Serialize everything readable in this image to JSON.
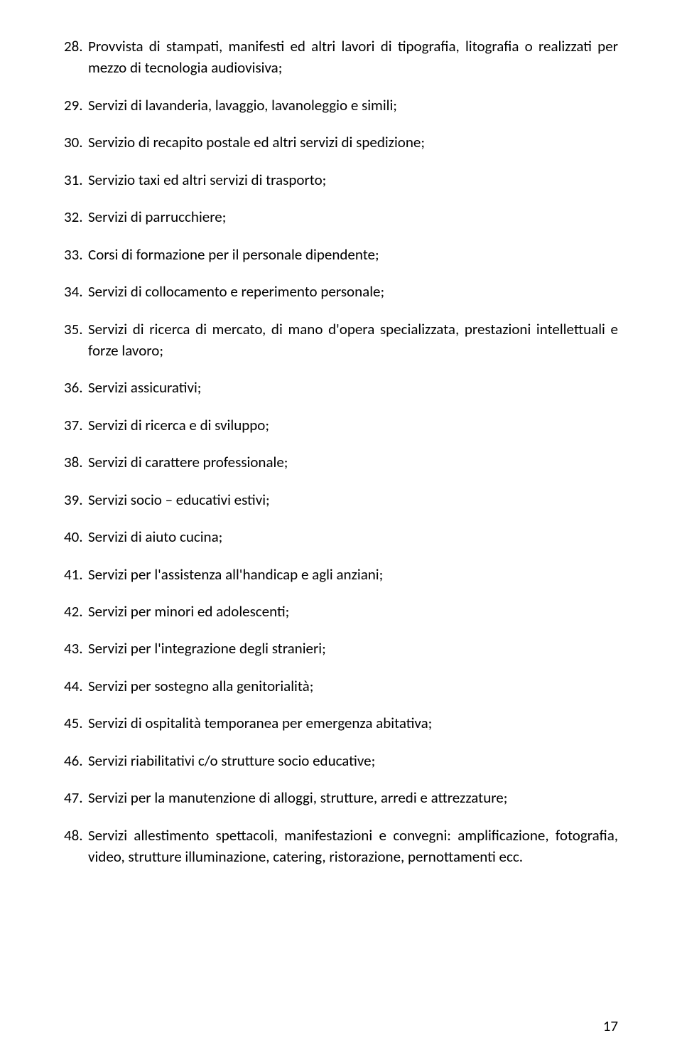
{
  "page_number": "17",
  "items": [
    {
      "num": "28.",
      "text": "Provvista di stampati, manifesti ed altri lavori di tipografia, litografia o realizzati per mezzo di tecnologia audiovisiva;",
      "justify": true
    },
    {
      "num": "29.",
      "text": "Servizi di lavanderia, lavaggio, lavanoleggio e simili;"
    },
    {
      "num": "30.",
      "text": "Servizio di recapito postale ed altri servizi di spedizione;"
    },
    {
      "num": "31.",
      "text": "Servizio taxi ed altri servizi di trasporto;"
    },
    {
      "num": "32.",
      "text": "Servizi di parrucchiere;"
    },
    {
      "num": "33.",
      "text": "Corsi di formazione per il personale dipendente;"
    },
    {
      "num": "34.",
      "text": "Servizi di collocamento e reperimento personale;"
    },
    {
      "num": "35.",
      "text": "Servizi di ricerca di mercato, di mano d'opera specializzata, prestazioni intellettuali e forze lavoro;",
      "justify": true
    },
    {
      "num": "36.",
      "text": "Servizi assicurativi;"
    },
    {
      "num": "37.",
      "text": "Servizi di ricerca e di sviluppo;"
    },
    {
      "num": "38.",
      "text": "Servizi di carattere professionale;"
    },
    {
      "num": "39.",
      "text": "Servizi socio – educativi estivi;"
    },
    {
      "num": "40.",
      "text": "Servizi di aiuto cucina;"
    },
    {
      "num": "41.",
      "text": "Servizi per l'assistenza all'handicap e agli anziani;"
    },
    {
      "num": "42.",
      "text": "Servizi per minori ed adolescenti;"
    },
    {
      "num": "43.",
      "text": "Servizi per l'integrazione degli stranieri;"
    },
    {
      "num": "44.",
      "text": "Servizi per sostegno alla genitorialità;"
    },
    {
      "num": "45.",
      "text": "Servizi di ospitalità temporanea per emergenza abitativa;"
    },
    {
      "num": "46.",
      "text": "Servizi riabilitativi c/o strutture socio educative;"
    },
    {
      "num": "47.",
      "text": "Servizi per la manutenzione di alloggi, strutture, arredi e attrezzature;"
    },
    {
      "num": "48.",
      "text": "Servizi allestimento spettacoli, manifestazioni e convegni: amplificazione, fotografia, video, strutture illuminazione, catering, ristorazione, pernottamenti ecc.",
      "justify": true
    }
  ]
}
